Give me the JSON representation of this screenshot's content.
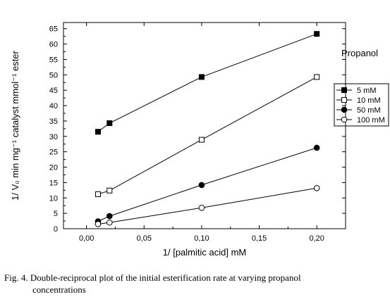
{
  "chart_data": {
    "type": "line",
    "xlabel": "1/ [palmitic acid] mM",
    "ylabel": "1/ V₀ min mg⁻¹ catalyst mmol⁻¹ ester",
    "xlim": [
      -0.02,
      0.225
    ],
    "ylim": [
      0,
      67
    ],
    "x_ticks": [
      "0,00",
      "0,05",
      "0,10",
      "0,15",
      "0,20"
    ],
    "y_ticks": [
      "0",
      "5",
      "10",
      "15",
      "20",
      "25",
      "30",
      "35",
      "40",
      "45",
      "50",
      "55",
      "60",
      "65"
    ],
    "x_tick_values": [
      0,
      0.05,
      0.1,
      0.15,
      0.2
    ],
    "y_tick_values": [
      0,
      5,
      10,
      15,
      20,
      25,
      30,
      35,
      40,
      45,
      50,
      55,
      60,
      65
    ],
    "legend_title": "Propanol",
    "legend_position": "right",
    "grid": false,
    "x": [
      0.01,
      0.02,
      0.1,
      0.2
    ],
    "series": [
      {
        "name": "5 mM",
        "marker": "filled-square",
        "values": [
          31.5,
          34.3,
          49.3,
          63.3
        ]
      },
      {
        "name": "10 mM",
        "marker": "open-square",
        "values": [
          11.2,
          12.4,
          28.9,
          49.3
        ]
      },
      {
        "name": "50 mM",
        "marker": "filled-circle",
        "values": [
          2.4,
          4.1,
          14.2,
          26.3
        ]
      },
      {
        "name": "100 mM",
        "marker": "open-circle",
        "values": [
          1.5,
          2.0,
          6.8,
          13.2
        ]
      }
    ]
  },
  "caption": {
    "line1": "Fig. 4. Double-reciprocal plot of the initial esterification rate at varying propanol",
    "line2": "concentrations"
  }
}
